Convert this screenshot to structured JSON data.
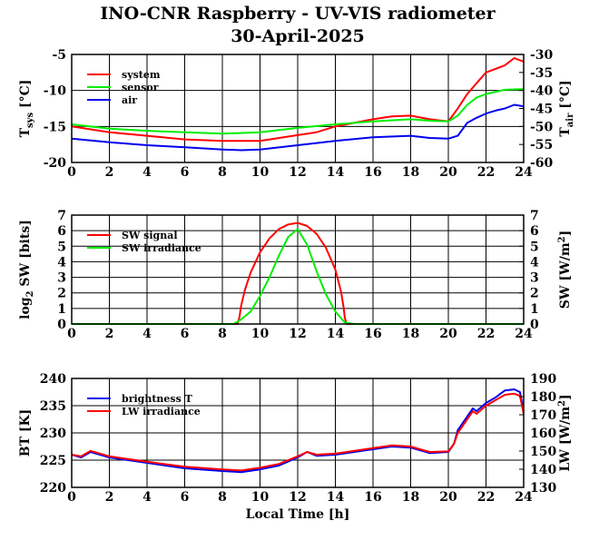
{
  "title": "INO-CNR Raspberry - UV-VIS radiometer",
  "date": "30-April-2025",
  "xlabel": "Local Time [h]",
  "colors": {
    "red": "#ff0000",
    "green": "#00ee00",
    "blue": "#0000ee"
  },
  "chart_data": [
    {
      "type": "line",
      "ylabel_left": "T",
      "ylabel_left_sub": "sys",
      "ylabel_left_unit": "[°C]",
      "ylabel_right": "T",
      "ylabel_right_sub": "air",
      "ylabel_right_unit": "[°C]",
      "xlim": [
        0,
        24
      ],
      "ylim_left": [
        -20,
        -5
      ],
      "ylim_right": [
        -60,
        -30
      ],
      "xticks": [
        "0",
        "2",
        "4",
        "6",
        "8",
        "10",
        "12",
        "14",
        "16",
        "18",
        "20",
        "22",
        "24"
      ],
      "yticks_left": [
        "-20",
        "-15",
        "-10",
        "-5"
      ],
      "yticks_right": [
        "-60",
        "-55",
        "-50",
        "-45",
        "-40",
        "-35",
        "-30"
      ],
      "series": [
        {
          "name": "system",
          "color": "#ff0000",
          "axis": "left",
          "x": [
            0,
            2,
            4,
            6,
            8,
            10,
            12,
            13,
            14,
            15,
            16,
            17,
            18,
            19,
            20,
            20.5,
            21,
            21.5,
            22,
            22.5,
            23,
            23.5,
            24
          ],
          "y": [
            -15,
            -15.8,
            -16.3,
            -16.8,
            -17,
            -17,
            -16.2,
            -15.8,
            -15,
            -14.5,
            -14,
            -13.6,
            -13.5,
            -14,
            -14.3,
            -12.5,
            -10.5,
            -9,
            -7.5,
            -7,
            -6.5,
            -5.5,
            -6
          ]
        },
        {
          "name": "sensor",
          "color": "#00ee00",
          "axis": "left",
          "x": [
            0,
            2,
            4,
            6,
            8,
            10,
            12,
            14,
            16,
            18,
            19,
            20,
            20.5,
            21,
            21.5,
            22,
            23,
            24
          ],
          "y": [
            -14.7,
            -15.3,
            -15.6,
            -15.8,
            -16,
            -15.8,
            -15.2,
            -14.7,
            -14.3,
            -14,
            -14.2,
            -14.3,
            -13.5,
            -12,
            -11,
            -10.5,
            -9.9,
            -9.8
          ]
        },
        {
          "name": "air",
          "color": "#0000ee",
          "axis": "left",
          "x": [
            0,
            2,
            4,
            6,
            8,
            9,
            10,
            12,
            14,
            16,
            18,
            19,
            20,
            20.5,
            21,
            21.5,
            22,
            22.5,
            23,
            23.5,
            24
          ],
          "y": [
            -16.7,
            -17.2,
            -17.6,
            -17.9,
            -18.2,
            -18.3,
            -18.2,
            -17.6,
            -17,
            -16.5,
            -16.3,
            -16.6,
            -16.7,
            -16.3,
            -14.5,
            -13.8,
            -13.2,
            -12.8,
            -12.5,
            -12,
            -12.2
          ]
        }
      ]
    },
    {
      "type": "line",
      "ylabel_left": "log",
      "ylabel_left_sub": "2",
      "ylabel_left_unit": "SW [bits]",
      "ylabel_right": "SW [W/m",
      "ylabel_right_sup": "2",
      "ylabel_right_end": "]",
      "xlim": [
        0,
        24
      ],
      "ylim_left": [
        0,
        7
      ],
      "ylim_right": [
        0,
        7
      ],
      "xticks": [
        "0",
        "2",
        "4",
        "6",
        "8",
        "10",
        "12",
        "14",
        "16",
        "18",
        "20",
        "22",
        "24"
      ],
      "yticks_left": [
        "0",
        "1",
        "2",
        "3",
        "4",
        "5",
        "6",
        "7"
      ],
      "yticks_right": [
        "0",
        "1",
        "2",
        "3",
        "4",
        "5",
        "6",
        "7"
      ],
      "series": [
        {
          "name": "SW signal",
          "color": "#ff0000",
          "axis": "left",
          "x": [
            0,
            8.8,
            8.9,
            9,
            9.2,
            9.5,
            10,
            10.5,
            11,
            11.5,
            12,
            12.5,
            13,
            13.5,
            14,
            14.3,
            14.45,
            14.5,
            14.6,
            24
          ],
          "y": [
            0,
            0,
            0.4,
            1.2,
            2.2,
            3.3,
            4.6,
            5.5,
            6.1,
            6.4,
            6.5,
            6.3,
            5.8,
            4.9,
            3.5,
            2.1,
            1,
            0.4,
            0,
            0
          ]
        },
        {
          "name": "SW irradiance",
          "color": "#00ee00",
          "axis": "left",
          "x": [
            0,
            8.6,
            9,
            9.5,
            10,
            10.5,
            11,
            11.5,
            12,
            12.5,
            13,
            13.5,
            14,
            14.5,
            15,
            24
          ],
          "y": [
            0,
            0,
            0.3,
            0.8,
            1.8,
            3,
            4.4,
            5.6,
            6.1,
            5.1,
            3.4,
            1.9,
            0.8,
            0.1,
            0,
            0
          ]
        }
      ]
    },
    {
      "type": "line",
      "ylabel_left": "BT [K]",
      "ylabel_right": "LW [W/m",
      "ylabel_right_sup": "2",
      "ylabel_right_end": "]",
      "xlim": [
        0,
        24
      ],
      "ylim_left": [
        220,
        240
      ],
      "ylim_right": [
        130,
        190
      ],
      "xticks": [
        "0",
        "2",
        "4",
        "6",
        "8",
        "10",
        "12",
        "14",
        "16",
        "18",
        "20",
        "22",
        "24"
      ],
      "yticks_left": [
        "220",
        "225",
        "230",
        "235",
        "240"
      ],
      "yticks_right": [
        "130",
        "140",
        "150",
        "160",
        "170",
        "180",
        "190"
      ],
      "series": [
        {
          "name": "brightness T",
          "color": "#0000ee",
          "axis": "left",
          "x": [
            0,
            0.5,
            1,
            2,
            4,
            6,
            8,
            9,
            10,
            11,
            12,
            12.5,
            13,
            14,
            16,
            17,
            18,
            19,
            20,
            20.3,
            20.5,
            21,
            21.3,
            21.5,
            22,
            22.5,
            23,
            23.5,
            23.8,
            24
          ],
          "y": [
            226,
            225.5,
            226.5,
            225.5,
            224.5,
            223.5,
            223,
            222.8,
            223.3,
            224,
            225.5,
            226.5,
            225.8,
            226,
            227,
            227.5,
            227.3,
            226.3,
            226.5,
            228,
            230.5,
            233,
            234.5,
            234,
            235.5,
            236.5,
            237.8,
            238,
            237.5,
            234
          ]
        },
        {
          "name": "LW irradiance",
          "color": "#ff0000",
          "axis": "left",
          "x": [
            0,
            0.5,
            1,
            2,
            4,
            6,
            8,
            9,
            10,
            11,
            12,
            12.5,
            13,
            14,
            16,
            17,
            18,
            19,
            20,
            20.3,
            20.5,
            21,
            21.3,
            21.5,
            22,
            22.5,
            23,
            23.5,
            23.8,
            24
          ],
          "y": [
            226,
            225.7,
            226.7,
            225.7,
            224.7,
            223.8,
            223.3,
            223.1,
            223.6,
            224.3,
            225.7,
            226.5,
            226,
            226.2,
            227.2,
            227.7,
            227.5,
            226.5,
            226.6,
            228,
            230,
            232.5,
            234,
            233.5,
            235,
            236,
            237,
            237.2,
            236.8,
            233.5
          ]
        }
      ]
    }
  ]
}
